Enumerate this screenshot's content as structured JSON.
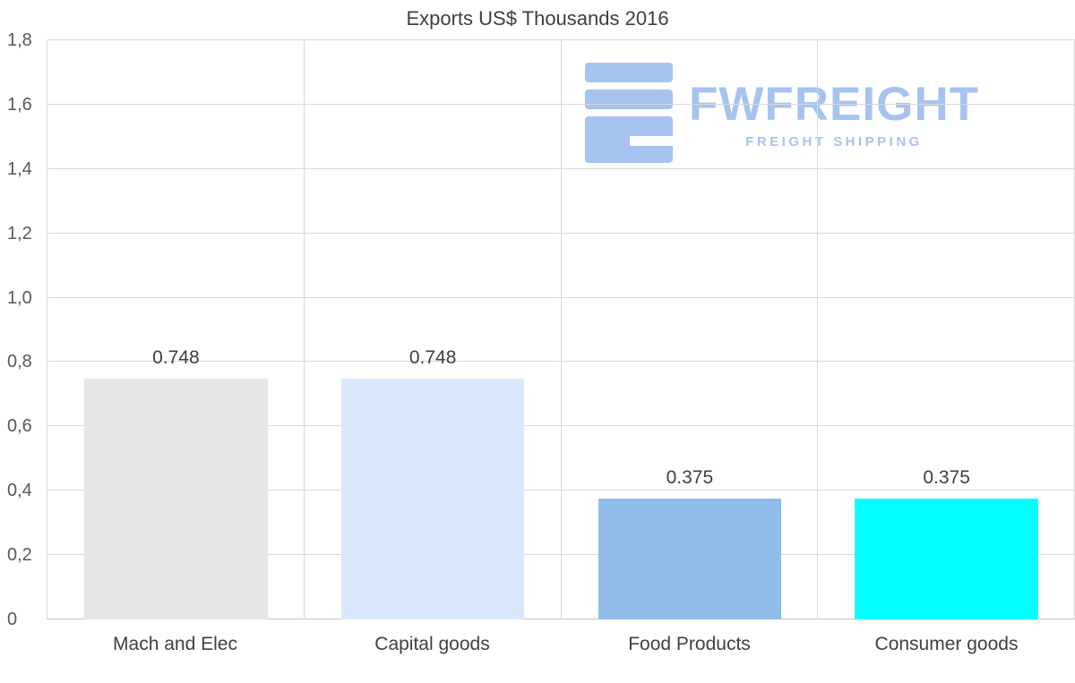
{
  "title": "Exports US$ Thousands 2016",
  "watermark": {
    "brand": "FWFREIGHT",
    "tagline": "FREIGHT SHIPPING",
    "color": "#a6c3f0",
    "icon": "fwfreight-logo-icon"
  },
  "chart_data": {
    "type": "bar",
    "title": "Exports US$ Thousands 2016",
    "categories": [
      "Mach and Elec",
      "Capital goods",
      "Food Products",
      "Consumer goods"
    ],
    "values": [
      0.748,
      0.748,
      0.375,
      0.375
    ],
    "value_labels": [
      "0.748",
      "0.748",
      "0.375",
      "0.375"
    ],
    "bar_colors": [
      "#e6e6e6",
      "#d9e8fb",
      "#8fbce6",
      "#00ffff"
    ],
    "xlabel": "",
    "ylabel": "",
    "ylim": [
      0,
      1.8
    ],
    "yticks": [
      {
        "value": 0.0,
        "label": "0"
      },
      {
        "value": 0.2,
        "label": "0,2"
      },
      {
        "value": 0.4,
        "label": "0,4"
      },
      {
        "value": 0.6,
        "label": "0,6"
      },
      {
        "value": 0.8,
        "label": "0,8"
      },
      {
        "value": 1.0,
        "label": "1,0"
      },
      {
        "value": 1.2,
        "label": "1,2"
      },
      {
        "value": 1.4,
        "label": "1,4"
      },
      {
        "value": 1.6,
        "label": "1,6"
      },
      {
        "value": 1.8,
        "label": "1,8"
      }
    ],
    "grid": true,
    "legend_position": "none"
  }
}
